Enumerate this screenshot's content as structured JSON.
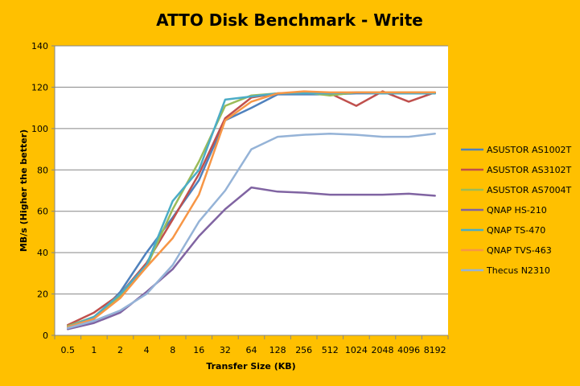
{
  "chart_data": {
    "type": "line",
    "title": "ATTO Disk Benchmark - Write",
    "xlabel": "Transfer Size (KB)",
    "ylabel": "MB/s (Higher the better)",
    "categories": [
      "0.5",
      "1",
      "2",
      "4",
      "8",
      "16",
      "32",
      "64",
      "128",
      "256",
      "512",
      "1024",
      "2048",
      "4096",
      "8192"
    ],
    "ylim": [
      0,
      140
    ],
    "yticks": [
      0,
      20,
      40,
      60,
      80,
      100,
      120,
      140
    ],
    "grid": "horizontal",
    "legend_position": "right",
    "series": [
      {
        "name": "ASUSTOR AS1002T",
        "color": "#4F81BD",
        "values": [
          4,
          8,
          21,
          40,
          57,
          75,
          104,
          110,
          116.5,
          116.5,
          116.5,
          117,
          117,
          117,
          117
        ]
      },
      {
        "name": "ASUSTOR AS3102T",
        "color": "#C0504D",
        "values": [
          5,
          11,
          20,
          35,
          56,
          78,
          105,
          115,
          117,
          117,
          117,
          111,
          118,
          113,
          117.5
        ]
      },
      {
        "name": "ASUSTOR AS7004T",
        "color": "#9BBB59",
        "values": [
          4.5,
          9,
          19,
          33,
          61,
          84,
          111,
          116,
          117,
          117.5,
          116,
          117.5,
          117.5,
          117.5,
          117.5
        ]
      },
      {
        "name": "QNAP HS-210",
        "color": "#8064A2",
        "values": [
          3,
          6,
          11,
          21,
          32,
          48,
          61,
          71.5,
          69.5,
          69,
          68,
          68,
          68,
          68.5,
          67.5
        ]
      },
      {
        "name": "QNAP TS-470",
        "color": "#4BACC6",
        "values": [
          4,
          9,
          20,
          34,
          65,
          80,
          114,
          115.5,
          117,
          117,
          117,
          117.5,
          117,
          117,
          117
        ]
      },
      {
        "name": "QNAP TVS-463",
        "color": "#F79646",
        "values": [
          4,
          8,
          18,
          33,
          47,
          68,
          104,
          113,
          117,
          118,
          117.5,
          117.5,
          117.5,
          117.5,
          117.5
        ]
      },
      {
        "name": "Thecus N2310",
        "color": "#95B3D7",
        "values": [
          3.5,
          7,
          12,
          20,
          34,
          55,
          70,
          90,
          96,
          97,
          97.5,
          97,
          96,
          96,
          97.5
        ]
      }
    ]
  }
}
